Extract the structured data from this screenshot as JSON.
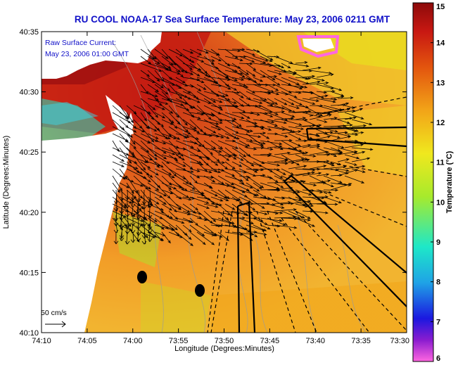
{
  "title": "RU COOL  NOAA-17  Sea Surface Temperature:  May 23, 2006 0211 GMT",
  "overlay": {
    "current_label": "Raw Surface Current:",
    "current_time": "May 23, 2006 01:00 GMT",
    "scale_label": "50 cm/s"
  },
  "axes": {
    "xlabel": "Longitude (Degrees:Minutes)",
    "ylabel": "Latitude (Degrees:Minutes)",
    "x_ticks": [
      "74:10",
      "74:05",
      "74:00",
      "73:55",
      "73:50",
      "73:45",
      "73:40",
      "73:35",
      "73:30"
    ],
    "y_ticks": [
      "40:35",
      "40:30",
      "40:25",
      "40:20",
      "40:15",
      "40:10"
    ]
  },
  "colorbar": {
    "label": "Temperature (°C)",
    "min": 6,
    "max": 15,
    "ticks": [
      "15",
      "14",
      "13",
      "12",
      "11",
      "10",
      "9",
      "8",
      "7",
      "6"
    ],
    "colors": [
      "#ff66e0",
      "#8a1ccf",
      "#1b18e0",
      "#1fa3e6",
      "#1ee8c8",
      "#a7ea2c",
      "#f0e81e",
      "#f2a418",
      "#e3550e",
      "#c81812",
      "#8c0a0a"
    ]
  },
  "colors": {
    "title": "#1010c8",
    "land": "#ffffff",
    "vector": "#000000"
  }
}
